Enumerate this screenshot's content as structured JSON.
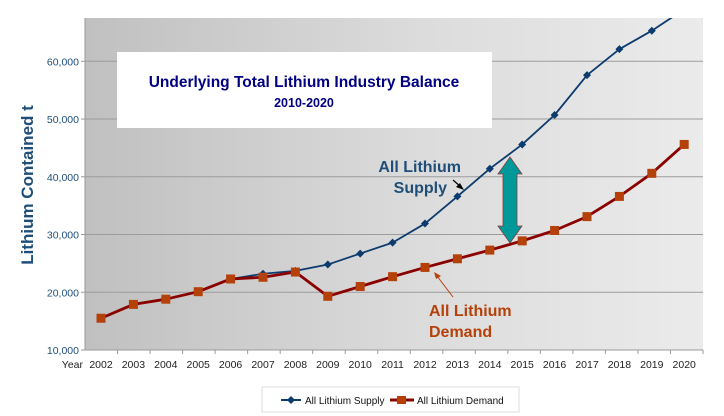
{
  "chart_data": {
    "type": "line",
    "title": "Underlying Total Lithium Industry Balance",
    "subtitle": "2010-2020",
    "xlabel": "Year",
    "ylabel": "Lithium Contained t",
    "ylim": [
      10000,
      67500
    ],
    "yticks": [
      10000,
      20000,
      30000,
      40000,
      50000,
      60000
    ],
    "ytick_labels": [
      "10,000",
      "20,000",
      "30,000",
      "40,000",
      "50,000",
      "60,000"
    ],
    "grid": true,
    "legend_position": "bottom",
    "x": [
      "2002",
      "2003",
      "2004",
      "2005",
      "2006",
      "2007",
      "2008",
      "2009",
      "2010",
      "2011",
      "2012",
      "2013",
      "2014",
      "2015",
      "2016",
      "2017",
      "2018",
      "2019",
      "2020"
    ],
    "series": [
      {
        "name": "All Lithium Supply",
        "color": "#0d3b6e",
        "marker": "diamond",
        "values": [
          15500,
          17900,
          18800,
          20100,
          22300,
          23200,
          23700,
          24800,
          26700,
          28600,
          31900,
          36600,
          41400,
          45600,
          50700,
          57600,
          62100,
          65300,
          69000
        ]
      },
      {
        "name": "All Lithium Demand",
        "color": "#8b0000",
        "marker_color": "#b5410a",
        "marker": "square",
        "values": [
          15500,
          17900,
          18800,
          20100,
          22300,
          22600,
          23500,
          19300,
          21000,
          22700,
          24300,
          25800,
          27300,
          28900,
          30700,
          33100,
          36600,
          40600,
          45600
        ]
      }
    ],
    "annotations": [
      {
        "name": "supply-label",
        "lines": [
          "All Lithium",
          "Supply"
        ],
        "color": "#1f4e79"
      },
      {
        "name": "demand-label",
        "lines": [
          "All Lithium",
          "Demand"
        ],
        "color": "#b5410a"
      },
      {
        "name": "gap-arrow",
        "type": "double-arrow",
        "year": "2015",
        "from": 28900,
        "to": 45600,
        "color": "#009999"
      }
    ]
  }
}
